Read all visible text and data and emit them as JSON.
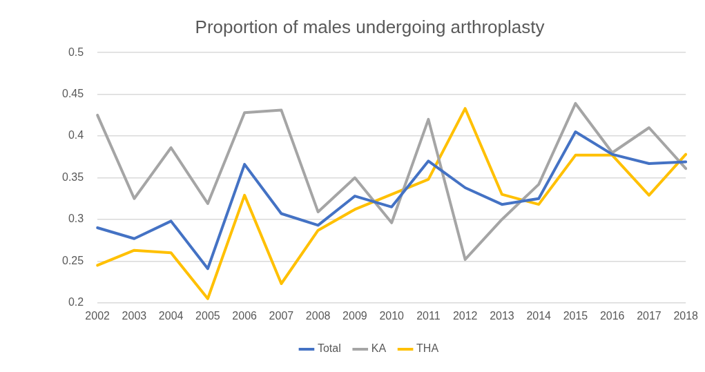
{
  "chart_data": {
    "type": "line",
    "title": "Proportion of males undergoing arthroplasty",
    "categories": [
      "2002",
      "2003",
      "2004",
      "2005",
      "2006",
      "2007",
      "2008",
      "2009",
      "2010",
      "2011",
      "2012",
      "2013",
      "2014",
      "2015",
      "2016",
      "2017",
      "2018"
    ],
    "series": [
      {
        "name": "Total",
        "color": "#4472c4",
        "values": [
          0.29,
          0.277,
          0.298,
          0.241,
          0.366,
          0.307,
          0.293,
          0.328,
          0.315,
          0.37,
          0.338,
          0.318,
          0.325,
          0.405,
          0.378,
          0.367,
          0.369
        ]
      },
      {
        "name": "KA",
        "color": "#a5a5a5",
        "values": [
          0.425,
          0.325,
          0.386,
          0.319,
          0.428,
          0.431,
          0.309,
          0.35,
          0.296,
          0.42,
          0.252,
          0.3,
          0.342,
          0.439,
          0.38,
          0.41,
          0.361
        ]
      },
      {
        "name": "THA",
        "color": "#ffc000",
        "values": [
          0.245,
          0.263,
          0.26,
          0.205,
          0.329,
          0.223,
          0.287,
          0.312,
          0.33,
          0.348,
          0.433,
          0.33,
          0.318,
          0.377,
          0.377,
          0.329,
          0.378
        ]
      }
    ],
    "ylim": [
      0.2,
      0.5
    ],
    "yticks": [
      0.2,
      0.25,
      0.3,
      0.35,
      0.4,
      0.45,
      0.5
    ],
    "grid": "y",
    "legend": "bottom",
    "marker": "none",
    "line_style": "solid"
  }
}
